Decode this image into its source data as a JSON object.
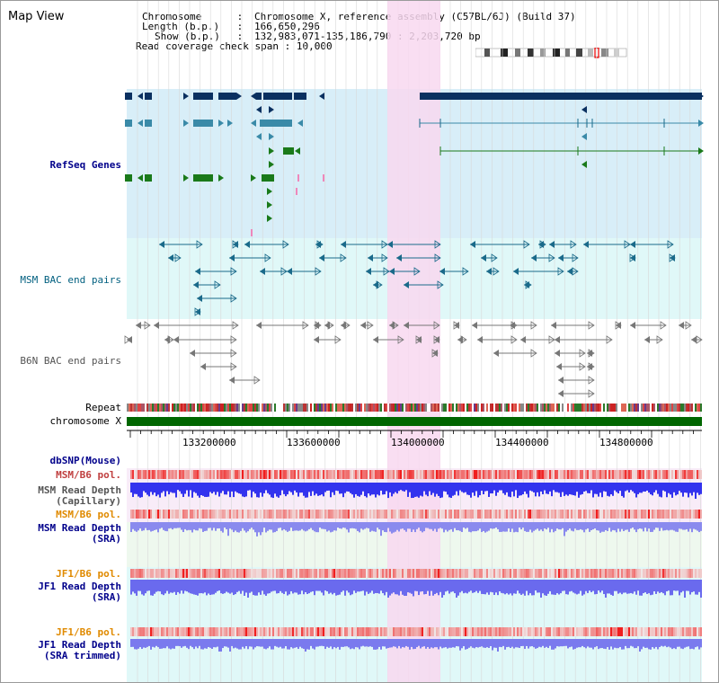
{
  "app_title": "Map View",
  "info": {
    "chromosome_key": "Chromosome",
    "chromosome_value": "Chromosome X, reference assembly (C57BL/6J) (Build 37)",
    "length_key": "Length (b.p.)",
    "length_value": "166,650,296",
    "show_key": "Show (b.p.)",
    "show_value": "132,983,071-135,186,790 : 2,203,720 bp",
    "coverage_key": "Read coverage check span",
    "coverage_value": "10,000"
  },
  "tracks": {
    "refseq_label": "RefSeq Genes",
    "msm_bac_label": "MSM BAC end pairs",
    "b6n_bac_label": "B6N BAC end pairs",
    "repeat_label": "Repeat",
    "chromosome_label": "chromosome X",
    "dbsnp_label": "dbSNP(Mouse)",
    "msm_b6_pol_label_1": "MSM/B6 pol.",
    "msm_depth_cap_label_1": "MSM Read Depth",
    "msm_depth_cap_label_2": "(Capillary)",
    "msm_b6_pol_label_2": "MSM/B6 pol.",
    "msm_depth_sra_label_1": "MSM Read Depth",
    "msm_depth_sra_label_2": "(SRA)",
    "jf1_pol_label_1": "JF1/B6 pol.",
    "jf1_depth_sra_label_1": "JF1 Read Depth",
    "jf1_depth_sra_label_2": "(SRA)",
    "jf1_pol_label_2": "JF1/B6 pol.",
    "jf1_depth_trim_label_1": "JF1 Read Depth",
    "jf1_depth_trim_label_2": "(SRA trimmed)"
  },
  "axis": {
    "ticks": [
      "133200000",
      "133600000",
      "134000000",
      "134400000",
      "134800000"
    ]
  },
  "colors": {
    "highlight": "#f8d8f0",
    "refseq_bg": "#d8eef8",
    "msm_bg": "#e0f8f8",
    "gene_dark": "#0a3060",
    "gene_mid": "#3a8aa8",
    "gene_green": "#1a7a1a",
    "msm_pair": "#1a6a8a",
    "b6n_pair": "#777777",
    "chrom_green": "#006600",
    "depth_blue": "#3333ee"
  }
}
